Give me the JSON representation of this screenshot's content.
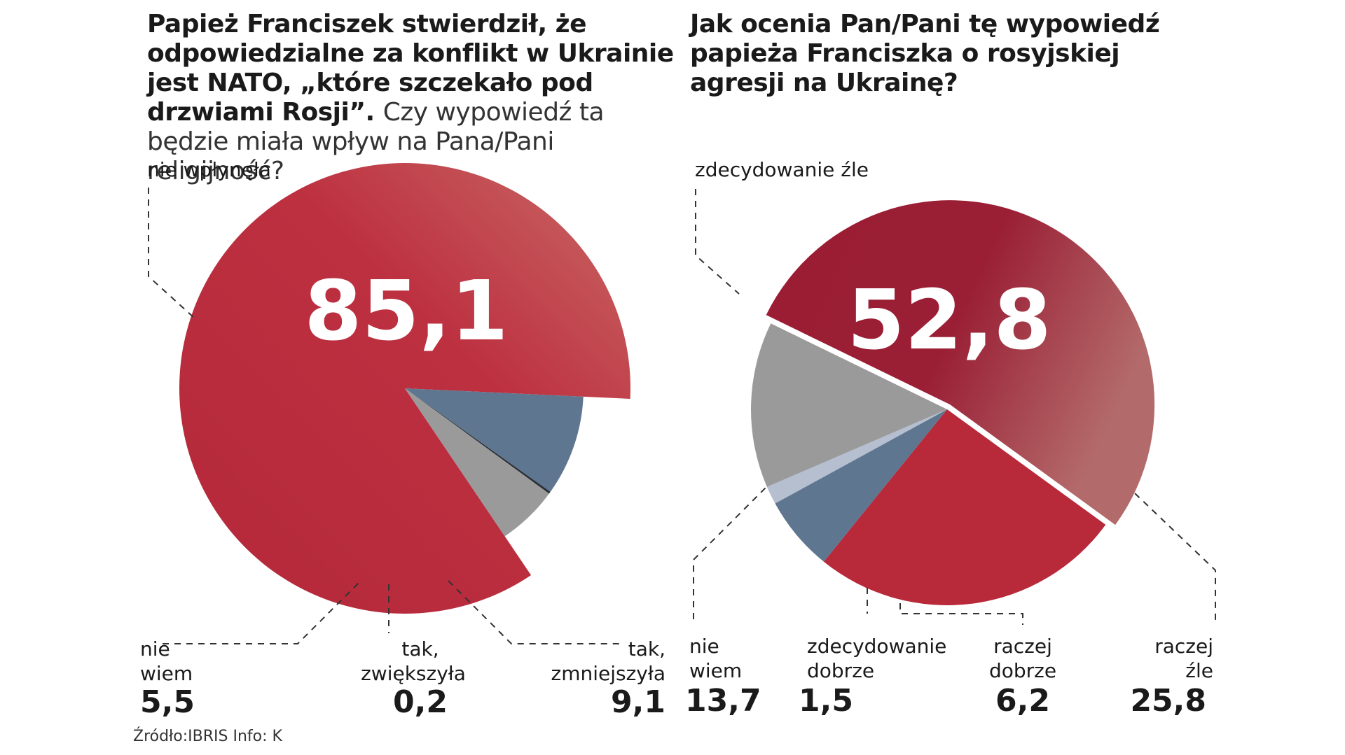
{
  "colors": {
    "red": "#b8293a",
    "dark_red": "#9b1c33",
    "gray": "#9a9a9a",
    "blue_gray": "#5f7690",
    "light_blue": "#b5bfd0",
    "dark": "#2a2f36"
  },
  "chart_data": [
    {
      "type": "pie",
      "title_bold": "Papież Franciszek stwierdził, że odpowiedzialne  za konflikt w Ukrainie jest NATO, „które szczekało pod drzwiami Rosji”.",
      "title_light": "Czy wypowiedź ta będzie miała wpływ na Pana/Pani religijność?",
      "highlight": "85,1",
      "slices": [
        {
          "label": "nie wpłynęła",
          "value": 85.1,
          "display": "85,1"
        },
        {
          "label": "tak, zmniejszyła",
          "value": 9.1,
          "display": "9,1"
        },
        {
          "label": "tak, zwiększyła",
          "value": 0.2,
          "display": "0,2"
        },
        {
          "label": "nie wiem",
          "value": 5.5,
          "display": "5,5"
        }
      ]
    },
    {
      "type": "pie",
      "title_bold": "Jak ocenia Pan/Pani tę wypowiedź papieża Franciszka o rosyjskiej agresji na Ukrainę?",
      "highlight": "52,8",
      "slices": [
        {
          "label": "zdecydowanie źle",
          "value": 52.8,
          "display": "52,8"
        },
        {
          "label": "raczej źle",
          "value": 25.8,
          "display": "25,8"
        },
        {
          "label": "raczej dobrze",
          "value": 6.2,
          "display": "6,2"
        },
        {
          "label": "zdecydowanie dobrze",
          "value": 1.5,
          "display": "1,5"
        },
        {
          "label": "nie wiem",
          "value": 13.7,
          "display": "13,7"
        }
      ]
    }
  ],
  "labels": {
    "left": {
      "nie_wplynela": "nie wpłynęła",
      "nie_wiem_1": "nie",
      "nie_wiem_2": "wiem",
      "nie_wiem_val": "5,5",
      "zwiekszyla_1": "tak,",
      "zwiekszyla_2": "zwiększyła",
      "zwiekszyla_val": "0,2",
      "zmniejszyla_1": "tak,",
      "zmniejszyla_2": "zmniejszyła",
      "zmniejszyla_val": "9,1"
    },
    "right": {
      "zdecydowanie_zle": "zdecydowanie źle",
      "nie_wiem_1": "nie",
      "nie_wiem_2": "wiem",
      "nie_wiem_val": "13,7",
      "zdec_dobrze_1": "zdecydowanie",
      "zdec_dobrze_2": "dobrze",
      "zdec_dobrze_val": "1,5",
      "raczej_dobrze_1": "raczej",
      "raczej_dobrze_2": "dobrze",
      "raczej_dobrze_val": "6,2",
      "raczej_zle_1": "raczej",
      "raczej_zle_2": "źle",
      "raczej_zle_val": "25,8"
    }
  },
  "source": "Źródło:IBRIS  Info: K"
}
